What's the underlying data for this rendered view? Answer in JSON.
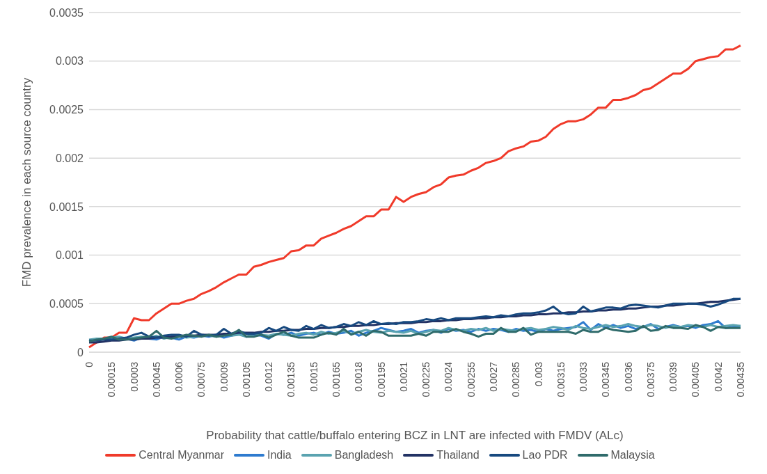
{
  "chart_data": {
    "type": "line",
    "xlabel": "Probability that cattle/buffalo entering BCZ in LNT are infected with FMDV (ALc)",
    "ylabel": "FMD prevalence in each source country",
    "categories": [
      "0",
      null,
      null,
      "0.00015",
      null,
      null,
      "0.0003",
      null,
      null,
      "0.00045",
      null,
      null,
      "0.0006",
      null,
      null,
      "0.00075",
      null,
      null,
      "0.0009",
      null,
      null,
      "0.00105",
      null,
      null,
      "0.0012",
      null,
      null,
      "0.00135",
      null,
      null,
      "0.0015",
      null,
      null,
      "0.00165",
      null,
      null,
      "0.0018",
      null,
      null,
      "0.00195",
      null,
      null,
      "0.0021",
      null,
      null,
      "0.00225",
      null,
      null,
      "0.0024",
      null,
      null,
      "0.00255",
      null,
      null,
      "0.0027",
      null,
      null,
      "0.00285",
      null,
      null,
      "0.003",
      null,
      null,
      "0.00315",
      null,
      null,
      "0.0033",
      null,
      null,
      "0.00345",
      null,
      null,
      "0.0036",
      null,
      null,
      "0.00375",
      null,
      null,
      "0.0039",
      null,
      null,
      "0.00405",
      null,
      null,
      "0.0042",
      null,
      null,
      "0.00435"
    ],
    "ylim": [
      0,
      0.0035
    ],
    "yticks": [
      0,
      0.0005,
      0.001,
      0.0015,
      0.002,
      0.0025,
      0.003,
      0.0035
    ],
    "grid": "y",
    "legend": "bottom",
    "series": [
      {
        "name": "Central Myanmar",
        "color": "#f03a2a",
        "values": [
          5e-05,
          0.0001,
          0.00015,
          0.00015,
          0.0002,
          0.0002,
          0.00035,
          0.00033,
          0.00033,
          0.0004,
          0.00045,
          0.0005,
          0.0005,
          0.00053,
          0.00055,
          0.0006,
          0.00063,
          0.00067,
          0.00072,
          0.00076,
          0.0008,
          0.0008,
          0.00088,
          0.0009,
          0.00093,
          0.00095,
          0.00097,
          0.00104,
          0.00105,
          0.0011,
          0.0011,
          0.00117,
          0.0012,
          0.00123,
          0.00127,
          0.0013,
          0.00135,
          0.0014,
          0.0014,
          0.00147,
          0.00147,
          0.0016,
          0.00155,
          0.0016,
          0.00163,
          0.00165,
          0.0017,
          0.00173,
          0.0018,
          0.00182,
          0.00183,
          0.00187,
          0.0019,
          0.00195,
          0.00197,
          0.002,
          0.00207,
          0.0021,
          0.00212,
          0.00217,
          0.00218,
          0.00222,
          0.0023,
          0.00235,
          0.00238,
          0.00238,
          0.0024,
          0.00245,
          0.00252,
          0.00252,
          0.0026,
          0.0026,
          0.00262,
          0.00265,
          0.0027,
          0.00272,
          0.00277,
          0.00282,
          0.00287,
          0.00287,
          0.00292,
          0.003,
          0.00302,
          0.00304,
          0.00305,
          0.00312,
          0.00312,
          0.00316
        ]
      },
      {
        "name": "India",
        "color": "#2e7bcf",
        "values": [
          null,
          null,
          0.00013,
          0.00014,
          0.00013,
          0.00014,
          0.00012,
          0.00015,
          0.00014,
          0.00013,
          0.00016,
          0.00015,
          0.00013,
          0.00016,
          0.00015,
          0.00017,
          0.00016,
          0.00018,
          0.00015,
          0.00017,
          0.00019,
          0.00016,
          0.00018,
          0.00017,
          0.00014,
          0.00019,
          0.00018,
          0.0002,
          0.00017,
          0.00019,
          0.0002,
          0.00018,
          0.00021,
          0.00019,
          0.0002,
          0.00022,
          0.00017,
          0.0002,
          0.00022,
          0.00025,
          0.00023,
          0.00021,
          0.00022,
          0.00024,
          0.0002,
          0.00022,
          0.00023,
          0.0002,
          0.00024,
          0.00022,
          0.00023,
          0.00021,
          0.00024,
          0.00022,
          0.00024,
          0.00023,
          0.00021,
          0.00024,
          0.00022,
          0.00023,
          0.00021,
          0.00024,
          0.00022,
          0.00024,
          0.00025,
          0.00026,
          0.00031,
          0.00023,
          0.00029,
          0.00025,
          0.00028,
          0.00025,
          0.00027,
          0.00024,
          0.00026,
          0.00029,
          0.00024,
          0.00026,
          0.00028,
          0.00026,
          0.00027,
          0.00025,
          0.00028,
          0.00029,
          0.00032,
          0.00025,
          0.00026,
          0.00027
        ]
      },
      {
        "name": "Bangladesh",
        "color": "#5aa3b0",
        "values": [
          0.00013,
          0.00014,
          0.00014,
          0.00015,
          0.00016,
          0.00014,
          0.00015,
          0.00016,
          0.00015,
          0.00017,
          0.00014,
          0.00016,
          0.00017,
          0.00015,
          0.00016,
          0.00018,
          0.00017,
          0.00016,
          0.00018,
          0.00017,
          0.00018,
          0.00016,
          0.00019,
          0.00018,
          0.00017,
          0.00019,
          0.00018,
          0.00017,
          0.00019,
          0.0002,
          0.00018,
          0.00021,
          0.00019,
          0.0002,
          0.00022,
          0.00019,
          0.00021,
          0.00023,
          0.00021,
          0.0002,
          0.00022,
          0.00021,
          0.0002,
          0.00022,
          0.00019,
          0.00021,
          0.00023,
          0.00022,
          0.00025,
          0.00023,
          0.00022,
          0.00024,
          0.00023,
          0.00025,
          0.00022,
          0.00024,
          0.00023,
          0.00022,
          0.00024,
          0.00025,
          0.00023,
          0.00024,
          0.00026,
          0.00025,
          0.00023,
          0.00027,
          0.00025,
          0.00024,
          0.00026,
          0.00028,
          0.00026,
          0.00027,
          0.00029,
          0.00027,
          0.00026,
          0.00028,
          0.00027,
          0.00025,
          0.00027,
          0.00026,
          0.00028,
          0.00027,
          0.00026,
          0.00028,
          0.00026,
          0.00027,
          0.00028,
          0.00027
        ]
      },
      {
        "name": "Thailand",
        "color": "#223264",
        "values": [
          0.0001,
          0.0001,
          0.00011,
          0.00012,
          0.00012,
          0.00013,
          0.00013,
          0.00014,
          0.00014,
          0.00015,
          0.00015,
          0.00016,
          0.00016,
          0.00017,
          0.00017,
          0.00018,
          0.00018,
          0.00018,
          0.00019,
          0.00019,
          0.0002,
          0.0002,
          0.0002,
          0.00021,
          0.00021,
          0.00022,
          0.00022,
          0.00023,
          0.00023,
          0.00024,
          0.00024,
          0.00025,
          0.00025,
          0.00026,
          0.00026,
          0.00027,
          0.00027,
          0.00028,
          0.00028,
          0.00029,
          0.00029,
          0.0003,
          0.0003,
          0.0003,
          0.00031,
          0.00031,
          0.00032,
          0.00032,
          0.00033,
          0.00033,
          0.00034,
          0.00034,
          0.00035,
          0.00035,
          0.00036,
          0.00036,
          0.00037,
          0.00037,
          0.00038,
          0.00038,
          0.00039,
          0.00039,
          0.0004,
          0.0004,
          0.00041,
          0.00041,
          0.00042,
          0.00042,
          0.00043,
          0.00043,
          0.00044,
          0.00044,
          0.00045,
          0.00045,
          0.00046,
          0.00047,
          0.00047,
          0.00048,
          0.00048,
          0.00049,
          0.0005,
          0.0005,
          0.00051,
          0.00052,
          0.00052,
          0.00053,
          0.00054,
          0.00055
        ]
      },
      {
        "name": "Lao PDR",
        "color": "#17497f",
        "values": [
          0.00012,
          0.00012,
          0.00013,
          0.00013,
          0.00014,
          0.00015,
          0.00018,
          0.0002,
          0.00016,
          0.00015,
          0.00017,
          0.00018,
          0.00018,
          0.00016,
          0.00022,
          0.00018,
          0.00017,
          0.00018,
          0.00024,
          0.00019,
          0.00022,
          0.00019,
          0.00019,
          0.0002,
          0.00025,
          0.00022,
          0.00026,
          0.00023,
          0.00022,
          0.00027,
          0.00024,
          0.00028,
          0.00025,
          0.00026,
          0.00029,
          0.00027,
          0.00031,
          0.00028,
          0.00032,
          0.00029,
          0.0003,
          0.00029,
          0.00031,
          0.00031,
          0.00032,
          0.00034,
          0.00033,
          0.00035,
          0.00033,
          0.00035,
          0.00035,
          0.00035,
          0.00036,
          0.00037,
          0.00036,
          0.00038,
          0.00037,
          0.00039,
          0.0004,
          0.0004,
          0.00041,
          0.00043,
          0.00047,
          0.00041,
          0.00039,
          0.0004,
          0.00047,
          0.00042,
          0.00044,
          0.00046,
          0.00046,
          0.00045,
          0.00048,
          0.00049,
          0.00048,
          0.00047,
          0.00046,
          0.00048,
          0.0005,
          0.0005,
          0.0005,
          0.0005,
          0.00049,
          0.00047,
          0.00049,
          0.00052,
          0.00055,
          0.00055
        ]
      },
      {
        "name": "Malaysia",
        "color": "#2f6b6b",
        "values": [
          0.00011,
          0.00013,
          0.00014,
          0.00016,
          0.00013,
          0.00013,
          0.00014,
          0.00015,
          0.00016,
          0.00022,
          0.00015,
          0.00014,
          0.00016,
          0.00018,
          0.00017,
          0.00016,
          0.00018,
          0.00016,
          0.00017,
          0.00018,
          0.00023,
          0.00016,
          0.00016,
          0.00018,
          0.00015,
          0.00018,
          0.00021,
          0.00017,
          0.00015,
          0.00015,
          0.00015,
          0.00018,
          0.0002,
          0.00018,
          0.00024,
          0.00018,
          0.00021,
          0.00017,
          0.00022,
          0.00021,
          0.00017,
          0.00017,
          0.00017,
          0.00017,
          0.00019,
          0.00017,
          0.00021,
          0.00021,
          0.00021,
          0.00024,
          0.00021,
          0.00019,
          0.00016,
          0.00019,
          0.00019,
          0.00025,
          0.00021,
          0.00021,
          0.00025,
          0.00018,
          0.00021,
          0.00021,
          0.00021,
          0.00021,
          0.00021,
          0.00019,
          0.00023,
          0.00021,
          0.00021,
          0.00025,
          0.00023,
          0.00022,
          0.00021,
          0.00022,
          0.00027,
          0.00022,
          0.00023,
          0.00027,
          0.00025,
          0.00025,
          0.00024,
          0.00028,
          0.00026,
          0.00022,
          0.00026,
          0.00025,
          0.00025,
          0.00025
        ]
      }
    ]
  }
}
